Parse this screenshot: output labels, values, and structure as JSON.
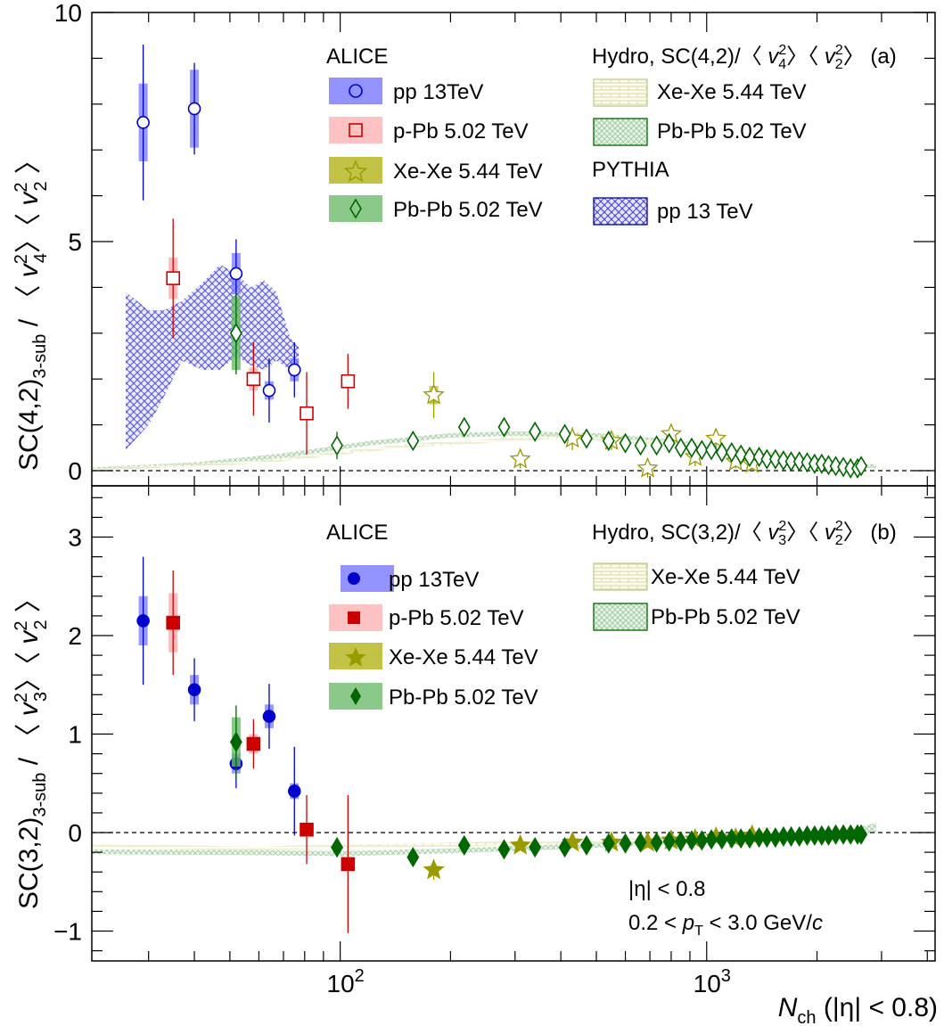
{
  "chart_data": [
    {
      "type": "scatter",
      "panel_label": "(a)",
      "ylabel": {
        "main": "SC(4,2)",
        "sub": "3-sub",
        "norm_a": "4",
        "norm_b": "2",
        "sq": "2"
      },
      "x_log": true,
      "xlim": [
        21,
        4200
      ],
      "ylim": [
        0,
        10
      ],
      "yticks": [
        "0",
        "5",
        "10"
      ],
      "ytick_values": [
        0,
        5,
        10
      ],
      "legend": {
        "alice_header": "ALICE",
        "alice": [
          "pp 13TeV",
          "p-Pb 5.02 TeV",
          "Xe-Xe 5.44 TeV",
          "Pb-Pb 5.02 TeV"
        ],
        "hydro_header": {
          "prefix": "Hydro, SC(4,2)/",
          "n": "4"
        },
        "hydro": [
          "Xe-Xe 5.44 TeV",
          "Pb-Pb 5.02 TeV"
        ],
        "pythia_header": "PYTHIA",
        "pythia": [
          "pp 13 TeV"
        ]
      },
      "series": [
        {
          "name": "pp 13TeV",
          "x": [
            29,
            40,
            52,
            64,
            75
          ],
          "y": [
            7.6,
            7.9,
            4.3,
            1.75,
            2.2
          ],
          "err": [
            1.7,
            1.0,
            0.75,
            0.7,
            0.6
          ],
          "sys": [
            0.85,
            0.85,
            0.45,
            0.2,
            0.25
          ]
        },
        {
          "name": "p-Pb 5.02 TeV",
          "x": [
            35,
            58,
            81,
            105
          ],
          "y": [
            4.2,
            2.0,
            1.25,
            1.95
          ],
          "err": [
            1.3,
            0.8,
            0.9,
            0.6
          ],
          "sys": [
            0.45,
            0.25,
            0.15,
            0.15
          ]
        },
        {
          "name": "Xe-Xe 5.44 TeV",
          "x": [
            180,
            310,
            430,
            550,
            690,
            800,
            930,
            1060,
            1200,
            1330
          ],
          "y": [
            1.65,
            0.25,
            0.7,
            0.65,
            0.05,
            0.8,
            0.3,
            0.7,
            0.2,
            0.15
          ],
          "err": [
            0.5,
            0.2,
            0.25,
            0.2,
            0.2,
            0.2,
            0.2,
            0.2,
            0.15,
            0.15
          ],
          "sys": [
            0.2,
            0.05,
            0.05,
            0.05,
            0.05,
            0.05,
            0.05,
            0.05,
            0.05,
            0.05
          ]
        },
        {
          "name": "Pb-Pb 5.02 TeV",
          "x": [
            52,
            98,
            158,
            218,
            280,
            340,
            410,
            470,
            540,
            600,
            660,
            730,
            790,
            850,
            910,
            970,
            1030,
            1100,
            1170,
            1240,
            1310,
            1390,
            1460,
            1540,
            1620,
            1700,
            1790,
            1880,
            1970,
            2060,
            2150,
            2250,
            2360,
            2470,
            2580,
            2640
          ],
          "y": [
            3.0,
            0.55,
            0.65,
            0.95,
            0.95,
            0.85,
            0.8,
            0.7,
            0.65,
            0.6,
            0.55,
            0.55,
            0.6,
            0.5,
            0.5,
            0.45,
            0.45,
            0.4,
            0.4,
            0.35,
            0.3,
            0.3,
            0.25,
            0.25,
            0.22,
            0.2,
            0.2,
            0.18,
            0.15,
            0.15,
            0.12,
            0.1,
            0.08,
            0.05,
            0.05,
            0.1
          ],
          "err": [
            0.9,
            0.3,
            0.15,
            0.15,
            0.12,
            0.12,
            0.12,
            0.1,
            0.1,
            0.1,
            0.1,
            0.1,
            0.1,
            0.1,
            0.1,
            0.1,
            0.1,
            0.1,
            0.1,
            0.1,
            0.1,
            0.1,
            0.1,
            0.1,
            0.1,
            0.1,
            0.1,
            0.1,
            0.1,
            0.1,
            0.1,
            0.1,
            0.1,
            0.1,
            0.1,
            0.1
          ],
          "sys": [
            0.8,
            0.05,
            0.05,
            0.05,
            0.05,
            0.05,
            0.05,
            0.05,
            0.05,
            0.05,
            0.05,
            0.05,
            0.05,
            0.05,
            0.05,
            0.05,
            0.05,
            0.05,
            0.05,
            0.05,
            0.05,
            0.05,
            0.05,
            0.05,
            0.05,
            0.05,
            0.05,
            0.05,
            0.05,
            0.05,
            0.05,
            0.05,
            0.05,
            0.05,
            0.05,
            0.05
          ]
        }
      ],
      "bands": [
        {
          "name": "PYTHIA pp 13 TeV",
          "x": [
            26,
            30,
            33,
            37,
            42,
            47,
            52,
            57,
            62,
            67,
            73,
            77
          ],
          "lo": [
            0.45,
            1.0,
            1.6,
            2.4,
            2.2,
            2.2,
            2.5,
            2.3,
            2.2,
            2.4,
            2.2,
            2.2
          ],
          "hi": [
            3.9,
            3.5,
            3.5,
            3.7,
            4.1,
            4.5,
            4.3,
            4.0,
            4.15,
            3.9,
            2.9,
            2.7
          ]
        },
        {
          "name": "Hydro Pb-Pb 5.02 TeV",
          "x": [
            21,
            40,
            70,
            120,
            200,
            300,
            500,
            800,
            1200,
            2000,
            2900
          ],
          "lo": [
            0.02,
            0.1,
            0.28,
            0.55,
            0.72,
            0.76,
            0.72,
            0.58,
            0.4,
            0.15,
            0.05
          ],
          "hi": [
            0.07,
            0.18,
            0.38,
            0.65,
            0.82,
            0.86,
            0.82,
            0.68,
            0.5,
            0.24,
            0.13
          ]
        },
        {
          "name": "Hydro Xe-Xe 5.44 TeV",
          "x": [
            21,
            60,
            150,
            400,
            800,
            1500,
            2600
          ],
          "lo": [
            0.0,
            0.15,
            0.5,
            0.7,
            0.55,
            0.35,
            0.08
          ],
          "hi": [
            0.05,
            0.22,
            0.58,
            0.78,
            0.64,
            0.43,
            0.16
          ]
        }
      ]
    },
    {
      "type": "scatter",
      "panel_label": "(b)",
      "ylabel": {
        "main": "SC(3,2)",
        "sub": "3-sub",
        "norm_a": "3",
        "norm_b": "2",
        "sq": "2"
      },
      "x_log": true,
      "xlim": [
        21,
        4200
      ],
      "ylim": [
        -1.3,
        3.5
      ],
      "yticks": [
        "−1",
        "0",
        "1",
        "2",
        "3"
      ],
      "ytick_values": [
        -1,
        0,
        1,
        2,
        3
      ],
      "legend": {
        "alice_header": "ALICE",
        "alice": [
          "pp 13TeV",
          "p-Pb 5.02 TeV",
          "Xe-Xe 5.44 TeV",
          "Pb-Pb 5.02 TeV"
        ],
        "hydro_header": {
          "prefix": "Hydro, SC(3,2)/",
          "n": "3"
        },
        "hydro": [
          "Xe-Xe 5.44 TeV",
          "Pb-Pb 5.02 TeV"
        ]
      },
      "annotation": {
        "eta": "|η| < 0.8",
        "pt_prefix": "0.2 < ",
        "pt_p": "p",
        "pt_sub": "T",
        "pt_suffix": " < 3.0 GeV/",
        "pt_c": "c"
      },
      "series": [
        {
          "name": "pp 13TeV",
          "x": [
            29,
            40,
            52,
            64,
            75
          ],
          "y": [
            2.15,
            1.45,
            0.7,
            1.18,
            0.42
          ],
          "err": [
            0.65,
            0.32,
            0.25,
            0.33,
            0.45
          ],
          "sys": [
            0.25,
            0.15,
            0.1,
            0.12,
            0.08
          ]
        },
        {
          "name": "p-Pb 5.02 TeV",
          "x": [
            35,
            58,
            81,
            105
          ],
          "y": [
            2.13,
            0.9,
            0.03,
            -0.32
          ],
          "err": [
            0.53,
            0.25,
            0.35,
            0.7
          ],
          "sys": [
            0.3,
            0.1,
            0.05,
            0.05
          ]
        },
        {
          "name": "Xe-Xe 5.44 TeV",
          "x": [
            180,
            310,
            430,
            550,
            690,
            800,
            930,
            1060,
            1200,
            1330
          ],
          "y": [
            -0.38,
            -0.13,
            -0.1,
            -0.1,
            -0.1,
            -0.08,
            -0.07,
            -0.05,
            -0.06,
            -0.03
          ],
          "err": [
            0.1,
            0.05,
            0.05,
            0.04,
            0.04,
            0.04,
            0.04,
            0.04,
            0.04,
            0.04
          ],
          "sys": [
            0.03,
            0.02,
            0.02,
            0.02,
            0.02,
            0.02,
            0.02,
            0.02,
            0.02,
            0.02
          ]
        },
        {
          "name": "Pb-Pb 5.02 TeV",
          "x": [
            52,
            98,
            158,
            218,
            280,
            340,
            410,
            470,
            540,
            600,
            660,
            730,
            790,
            850,
            910,
            970,
            1030,
            1100,
            1170,
            1240,
            1310,
            1390,
            1460,
            1540,
            1620,
            1700,
            1790,
            1880,
            1970,
            2060,
            2150,
            2250,
            2360,
            2470,
            2580,
            2640
          ],
          "y": [
            0.92,
            -0.15,
            -0.25,
            -0.13,
            -0.17,
            -0.15,
            -0.15,
            -0.13,
            -0.11,
            -0.11,
            -0.1,
            -0.1,
            -0.09,
            -0.09,
            -0.08,
            -0.08,
            -0.07,
            -0.07,
            -0.06,
            -0.06,
            -0.06,
            -0.05,
            -0.05,
            -0.05,
            -0.04,
            -0.04,
            -0.04,
            -0.03,
            -0.03,
            -0.03,
            -0.03,
            -0.02,
            -0.02,
            -0.02,
            -0.02,
            -0.02
          ],
          "err": [
            0.37,
            0.1,
            0.05,
            0.05,
            0.04,
            0.04,
            0.04,
            0.03,
            0.03,
            0.03,
            0.03,
            0.03,
            0.03,
            0.03,
            0.03,
            0.03,
            0.03,
            0.03,
            0.03,
            0.03,
            0.03,
            0.03,
            0.03,
            0.03,
            0.03,
            0.03,
            0.03,
            0.03,
            0.03,
            0.03,
            0.03,
            0.03,
            0.03,
            0.03,
            0.03,
            0.03
          ],
          "sys": [
            0.25,
            0.02,
            0.02,
            0.02,
            0.02,
            0.02,
            0.02,
            0.02,
            0.02,
            0.02,
            0.02,
            0.02,
            0.02,
            0.02,
            0.02,
            0.02,
            0.02,
            0.02,
            0.02,
            0.02,
            0.02,
            0.02,
            0.02,
            0.02,
            0.02,
            0.02,
            0.02,
            0.02,
            0.02,
            0.02,
            0.02,
            0.02,
            0.02,
            0.02,
            0.02,
            0.02
          ]
        }
      ],
      "bands": [
        {
          "name": "Hydro Pb-Pb 5.02 TeV",
          "x": [
            21,
            60,
            100,
            200,
            400,
            700,
            1000,
            1500,
            2000,
            2500,
            2900
          ],
          "lo": [
            -0.22,
            -0.23,
            -0.24,
            -0.21,
            -0.17,
            -0.13,
            -0.1,
            -0.07,
            -0.05,
            -0.03,
            0.0
          ],
          "hi": [
            -0.17,
            -0.18,
            -0.19,
            -0.16,
            -0.12,
            -0.08,
            -0.05,
            -0.02,
            0.0,
            0.04,
            0.1
          ]
        },
        {
          "name": "Hydro Xe-Xe 5.44 TeV",
          "x": [
            21,
            60,
            150,
            400,
            800,
            1300,
            1500
          ],
          "lo": [
            -0.16,
            -0.18,
            -0.15,
            -0.12,
            -0.1,
            -0.08,
            0.04
          ],
          "hi": [
            -0.12,
            -0.14,
            -0.11,
            -0.08,
            -0.05,
            -0.03,
            0.09
          ]
        }
      ]
    }
  ],
  "shared_axis": {
    "xticks": [
      "10",
      "10"
    ],
    "xtick_exp": [
      "2",
      "3"
    ],
    "xtick_values": [
      100,
      1000
    ],
    "xlabel": {
      "n": "N",
      "sub": "ch",
      "rest": " (|η| < 0.8)"
    }
  },
  "colors": {
    "pp": "#0000cc",
    "pp_box": "#8080ff",
    "pPb": "#cc0000",
    "pPb_box": "#ffaaaa",
    "XeXe": "#999900",
    "XeXe_box": "#bbbb33",
    "PbPb": "#006600",
    "PbPb_box": "#66bb66",
    "pythia": "#5555cc",
    "hydro_xe": "#d8d8a8",
    "hydro_pb": "#b8d8b8"
  }
}
